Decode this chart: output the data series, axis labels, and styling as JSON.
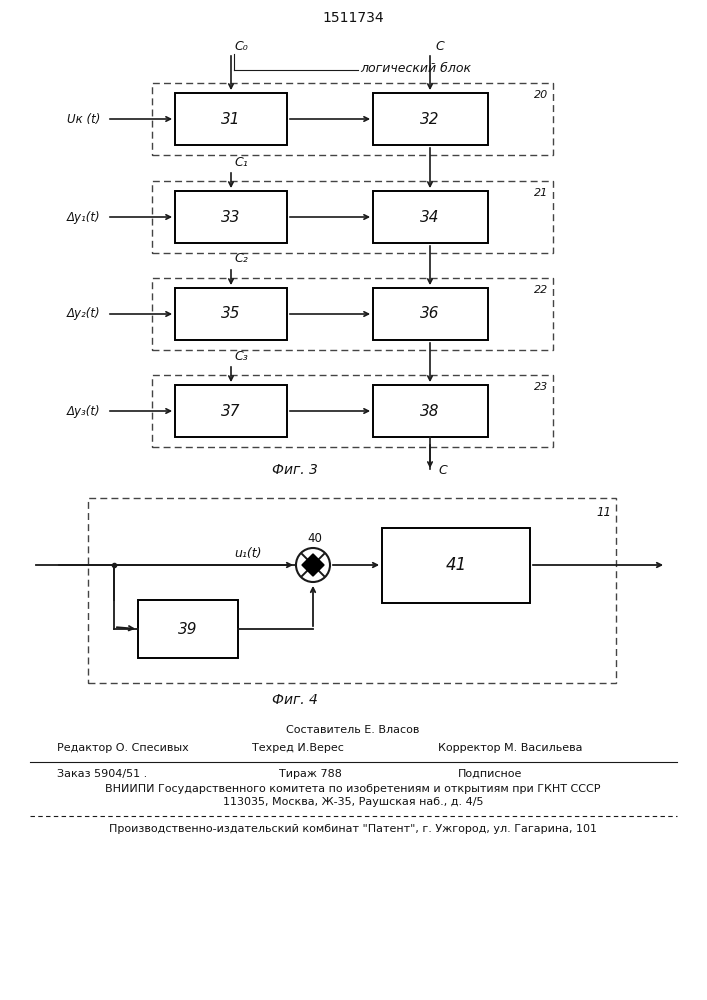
{
  "title": "1511734",
  "fig3_label": "Фиг. 3",
  "fig4_label": "Фиг. 4",
  "logical_block_label": "логический блок",
  "c0_label": "C₀",
  "c_label": "C",
  "c1_label": "C₁",
  "c2_label": "C₂",
  "c3_label": "C₃",
  "uk_label": "Uк (t)",
  "dy1_label": "Δy₁(t)",
  "dy2_label": "Δy₂(t)",
  "dy3_label": "Δy₃(t)",
  "u1_label": "u₁(t)",
  "row_labels_left": [
    "31",
    "33",
    "35",
    "37"
  ],
  "row_labels_right": [
    "32",
    "34",
    "36",
    "38"
  ],
  "outer_box_labels": [
    "20",
    "21",
    "22",
    "23"
  ],
  "summing_label": "40",
  "block39_label": "39",
  "block41_label": "41",
  "outer11_label": "11",
  "footer_composer": "Составитель Е. Власов",
  "footer_editor": "Редактор О. Спесивых",
  "footer_tech": "Техред И.Верес",
  "footer_corrector": "Корректор М. Васильева",
  "footer_order": "Заказ 5904/51 .",
  "footer_tirazh": "Тираж 788",
  "footer_podp": "Подписное",
  "footer_vniip1": "ВНИИПИ Государственного комитета по изобретениям и открытиям при ГКНТ СССР",
  "footer_vniip2": "113035, Москва, Ж-35, Раушская наб., д. 4/5",
  "footer_patent": "Производственно-издательский комбинат \"Патент\", г. Ужгород, ул. Гагарина, 101",
  "bg_color": "#ffffff"
}
